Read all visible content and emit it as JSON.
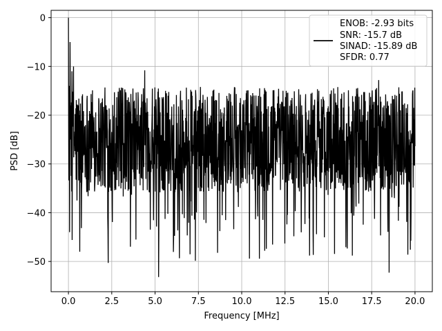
{
  "chart_data": {
    "type": "line",
    "title": "",
    "xlabel": "Frequency [MHz]",
    "ylabel": "PSD [dB]",
    "xlim": [
      -1.0,
      21.0
    ],
    "ylim": [
      -56.2,
      1.5
    ],
    "x_ticks": [
      0.0,
      2.5,
      5.0,
      7.5,
      10.0,
      12.5,
      15.0,
      17.5,
      20.0
    ],
    "x_tick_labels": [
      "0.0",
      "2.5",
      "5.0",
      "7.5",
      "10.0",
      "12.5",
      "15.0",
      "17.5",
      "20.0"
    ],
    "y_ticks": [
      0,
      -10,
      -20,
      -30,
      -40,
      -50
    ],
    "y_tick_labels": [
      "0",
      "−10",
      "−20",
      "−30",
      "−40",
      "−50"
    ],
    "grid": true,
    "legend_position": "top-right",
    "legend_lines": [
      "ENOB: -2.93 bits",
      "SNR: -15.7 dB",
      "SINAD: -15.89 dB",
      "SFDR: 0.77"
    ],
    "series": [
      {
        "color": "#000000",
        "x_range": [
          0.0,
          20.0
        ],
        "points_count": 1500,
        "noise_floor_mean_db": -25,
        "noise_floor_peak_db": -13,
        "noise_floor_min_db": -53.2,
        "features": [
          {
            "x": 0.0,
            "y": 0.0
          },
          {
            "x": 0.05,
            "y": -14
          },
          {
            "x": 0.1,
            "y": -5
          },
          {
            "x": 0.15,
            "y": -18
          },
          {
            "x": 0.2,
            "y": -11
          },
          {
            "x": 0.3,
            "y": -10
          },
          {
            "x": 0.5,
            "y": -37.5
          },
          {
            "x": 0.65,
            "y": -48
          },
          {
            "x": 2.3,
            "y": -50.3
          },
          {
            "x": 4.4,
            "y": -10.8
          },
          {
            "x": 5.2,
            "y": -53.2
          },
          {
            "x": 17.9,
            "y": -12.8
          },
          {
            "x": 18.5,
            "y": -52.3
          }
        ]
      }
    ]
  }
}
